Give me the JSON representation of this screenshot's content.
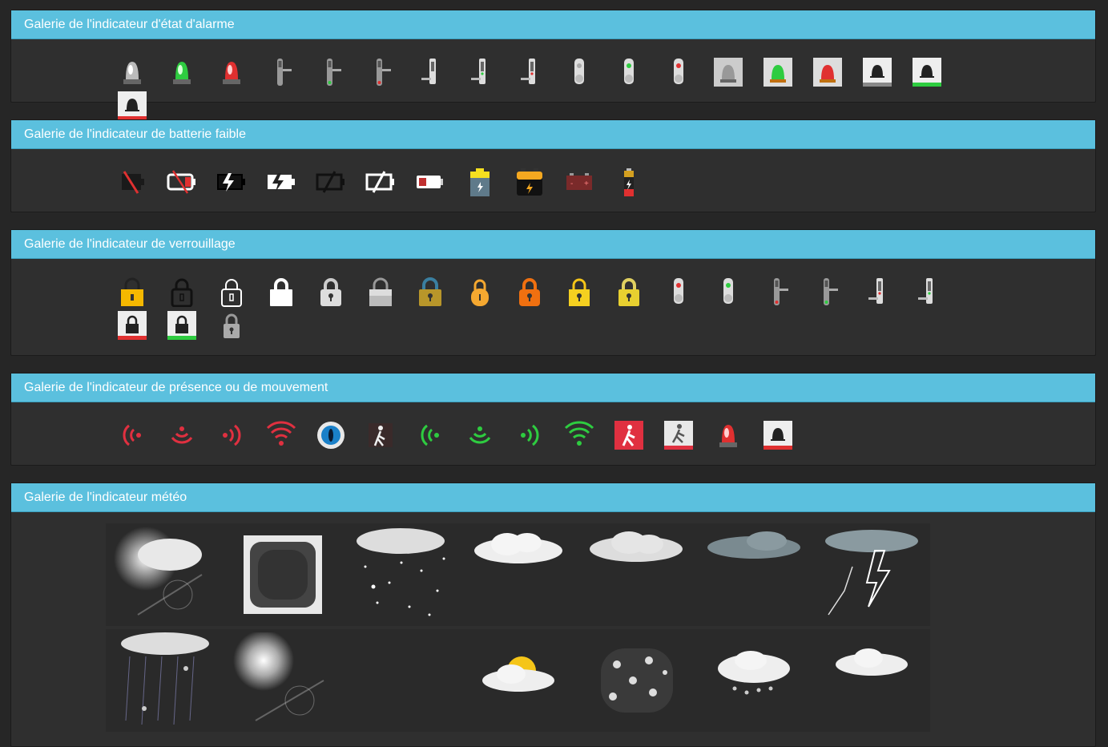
{
  "panels": {
    "alarm": {
      "title": "Galerie de l'indicateur d'état d'alarme"
    },
    "battery": {
      "title": "Galerie de l'indicateur de batterie faible"
    },
    "lock": {
      "title": "Galerie de l'indicateur de verrouillage"
    },
    "presence": {
      "title": "Galerie de l'indicateur de présence ou de mouvement"
    },
    "weather": {
      "title": "Galerie de l'indicateur météo"
    }
  },
  "alarm_icons": [
    "siren-gray-icon",
    "siren-green-icon",
    "siren-red-icon",
    "door-handle-keypad-icon",
    "door-handle-keypad-green-icon",
    "door-handle-keypad-red-icon",
    "lever-keypad-icon",
    "lever-keypad-green-icon",
    "lever-keypad-red-icon",
    "knob-keypad-icon",
    "knob-keypad-green-icon",
    "knob-keypad-red-icon",
    "siren-tile-gray-icon",
    "siren-tile-green-icon",
    "siren-tile-red-icon",
    "bell-tile-icon",
    "bell-tile-green-icon",
    "bell-tile-red-icon"
  ],
  "battery_icons": [
    "battery-slash-red-icon",
    "battery-empty-slash-icon",
    "battery-charging-dark-icon",
    "battery-charging-light-icon",
    "battery-slash-dark-icon",
    "battery-slash-light-icon",
    "battery-low-red-icon",
    "battery-yellow-top-icon",
    "battery-orange-icon",
    "car-battery-icon",
    "battery-cell-red-icon"
  ],
  "lock_icons": [
    "padlock-yellow-icon",
    "padlock-outline-dark-icon",
    "padlock-outline-light-icon",
    "padlock-white-icon",
    "padlock-gray-icon",
    "padlock-silver-icon",
    "padlock-gold-icon",
    "padlock-rounded-orange-icon",
    "padlock-orange-icon",
    "padlock-yellow-flat-icon",
    "padlock-yellow-glossy-icon",
    "knob-keypad-red-icon",
    "knob-keypad-green-icon",
    "door-handle-keypad-red-icon",
    "door-handle-keypad-green-icon",
    "lever-keypad-red-icon",
    "lever-keypad-green-icon",
    "padlock-tile-red-icon",
    "padlock-tile-green-icon",
    "padlock-small-gray-icon"
  ],
  "presence_icons": [
    "wave-left-red-icon",
    "wave-down-red-icon",
    "wave-right-red-icon",
    "wifi-red-icon",
    "eye-icon",
    "walker-dark-icon",
    "wave-left-green-icon",
    "wave-down-green-icon",
    "wave-right-green-icon",
    "wifi-green-icon",
    "walker-red-tile-icon",
    "walker-tile-red-bar-icon",
    "siren-red-icon",
    "bell-tile-red-icon"
  ],
  "weather_icons": [
    "cloud-sun-flare-icon",
    "fog-icon",
    "snow-icon",
    "cloud-icon",
    "cloud-gray-icon",
    "cloud-dark-icon",
    "thunderstorm-icon",
    "rain-icon",
    "sun-flare-icon",
    "blank-icon",
    "partly-cloudy-icon",
    "snowflakes-icon",
    "cloud-hail-icon",
    "cloud-small-icon"
  ],
  "colors": {
    "header": "#5bc0de",
    "panel": "#2f2f2f",
    "background": "#262626",
    "red": "#e03040",
    "green": "#2ecc40",
    "yellow": "#f5c518",
    "orange": "#f07010"
  }
}
